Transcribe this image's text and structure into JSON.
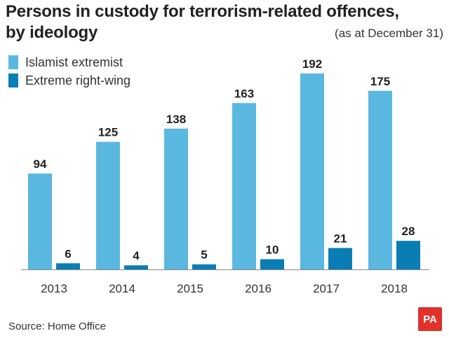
{
  "chart_data": {
    "type": "bar",
    "title_line1": "Persons in custody for terrorism-related offences,",
    "title_line2": "by ideology",
    "subtitle": "(as at December 31)",
    "categories": [
      "2013",
      "2014",
      "2015",
      "2016",
      "2017",
      "2018"
    ],
    "series": [
      {
        "name": "Islamist extremist",
        "values": [
          94,
          125,
          138,
          163,
          192,
          175
        ],
        "color": "#5ab8e0"
      },
      {
        "name": "Extreme right-wing",
        "values": [
          6,
          4,
          5,
          10,
          21,
          28
        ],
        "color": "#0a7db5"
      }
    ],
    "ylim": [
      0,
      192
    ],
    "grid": false,
    "legend": "top-left"
  },
  "source": "Source: Home Office",
  "logo": "PA",
  "colors": {
    "logo_bg": "#e0312a",
    "axis": "#888888"
  }
}
